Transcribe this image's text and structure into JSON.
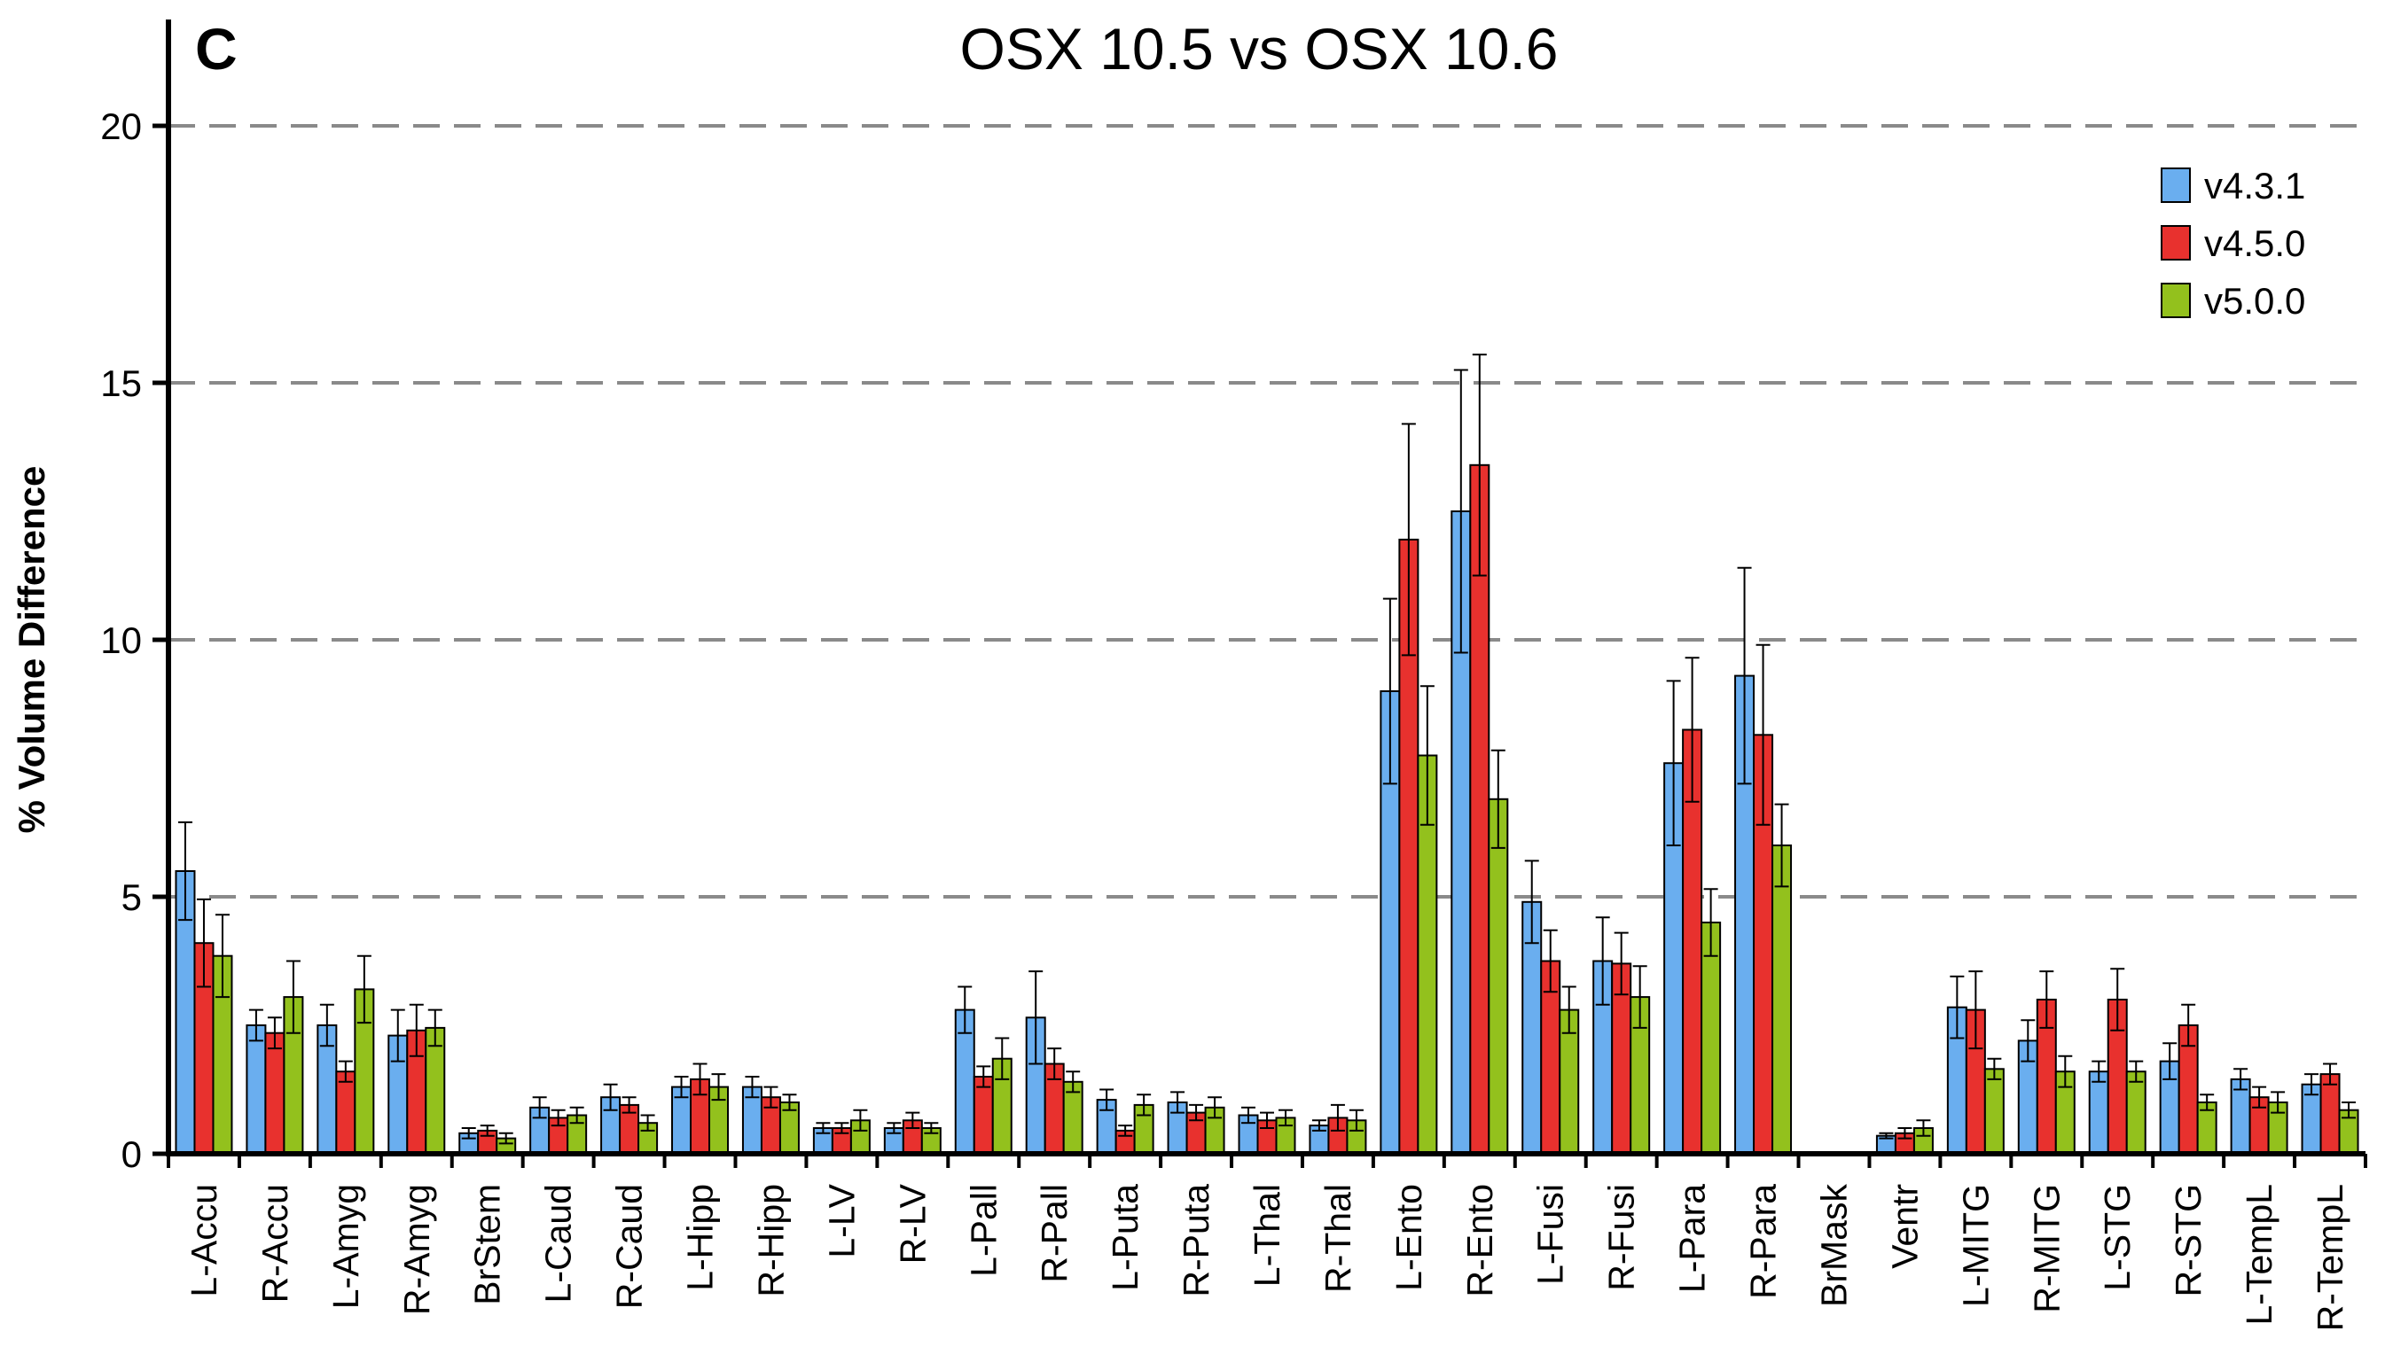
{
  "chart_data": {
    "type": "bar",
    "panel_label": "C",
    "title": "OSX 10.5 vs OSX 10.6",
    "ylabel": "% Volume Difference",
    "xlabel": "",
    "ylim": [
      0,
      20
    ],
    "yticks": [
      0,
      5,
      10,
      15,
      20
    ],
    "grid": "dashed horizontal at 5, 10, 15, 20",
    "legend_position": "top-right",
    "categories": [
      "L-Accu",
      "R-Accu",
      "L-Amyg",
      "R-Amyg",
      "BrStem",
      "L-Caud",
      "R-Caud",
      "L-Hipp",
      "R-Hipp",
      "L-LV",
      "R-LV",
      "L-Pall",
      "R-Pall",
      "L-Puta",
      "R-Puta",
      "L-Thal",
      "R-Thal",
      "L-Ento",
      "R-Ento",
      "L-Fusi",
      "R-Fusi",
      "L-Para",
      "R-Para",
      "BrMask",
      "Ventr",
      "L-MITG",
      "R-MITG",
      "L-STG",
      "R-STG",
      "L-TempL",
      "R-TempL"
    ],
    "series": [
      {
        "name": "v4.3.1",
        "color": "#6aaeef",
        "values": [
          5.5,
          2.5,
          2.5,
          2.3,
          0.4,
          0.9,
          1.1,
          1.3,
          1.3,
          0.5,
          0.5,
          2.8,
          2.65,
          1.05,
          1.0,
          0.75,
          0.55,
          9.0,
          12.5,
          4.9,
          3.75,
          7.6,
          9.3,
          0,
          0.35,
          2.85,
          2.2,
          1.6,
          1.8,
          1.45,
          1.35
        ],
        "errors": [
          0.95,
          0.3,
          0.4,
          0.5,
          0.1,
          0.2,
          0.25,
          0.2,
          0.2,
          0.1,
          0.1,
          0.45,
          0.9,
          0.2,
          0.2,
          0.15,
          0.1,
          1.8,
          2.75,
          0.8,
          0.85,
          1.6,
          2.1,
          0,
          0.05,
          0.6,
          0.4,
          0.2,
          0.35,
          0.2,
          0.2
        ]
      },
      {
        "name": "v4.5.0",
        "color": "#e8312e",
        "values": [
          4.1,
          2.35,
          1.6,
          2.4,
          0.45,
          0.7,
          0.95,
          1.45,
          1.1,
          0.5,
          0.65,
          1.5,
          1.75,
          0.45,
          0.8,
          0.65,
          0.7,
          11.95,
          13.4,
          3.75,
          3.7,
          8.25,
          8.15,
          0,
          0.4,
          2.8,
          3.0,
          3.0,
          2.5,
          1.1,
          1.55
        ],
        "errors": [
          0.85,
          0.3,
          0.2,
          0.5,
          0.1,
          0.15,
          0.15,
          0.3,
          0.2,
          0.1,
          0.15,
          0.2,
          0.3,
          0.1,
          0.15,
          0.15,
          0.25,
          2.25,
          2.15,
          0.6,
          0.6,
          1.4,
          1.75,
          0,
          0.1,
          0.75,
          0.55,
          0.6,
          0.4,
          0.2,
          0.2
        ]
      },
      {
        "name": "v5.0.0",
        "color": "#93c11d",
        "values": [
          3.85,
          3.05,
          3.2,
          2.45,
          0.3,
          0.75,
          0.6,
          1.3,
          1.0,
          0.65,
          0.5,
          1.85,
          1.4,
          0.95,
          0.9,
          0.7,
          0.65,
          7.75,
          6.9,
          2.8,
          3.05,
          4.5,
          6.0,
          0,
          0.5,
          1.65,
          1.6,
          1.6,
          1.0,
          1.0,
          0.85
        ],
        "errors": [
          0.8,
          0.7,
          0.65,
          0.35,
          0.1,
          0.15,
          0.15,
          0.25,
          0.15,
          0.2,
          0.1,
          0.4,
          0.2,
          0.2,
          0.2,
          0.15,
          0.2,
          1.35,
          0.95,
          0.45,
          0.6,
          0.65,
          0.8,
          0,
          0.15,
          0.2,
          0.3,
          0.2,
          0.15,
          0.2,
          0.15
        ]
      }
    ]
  }
}
